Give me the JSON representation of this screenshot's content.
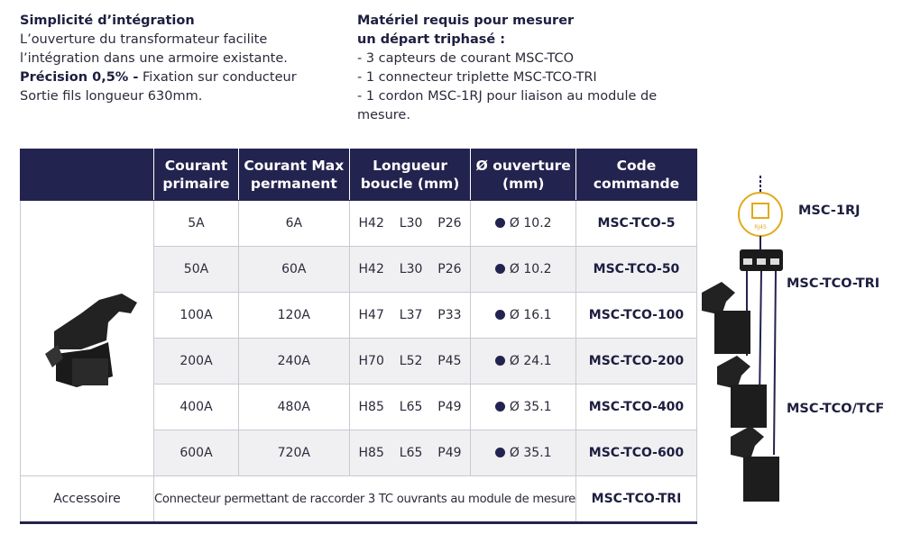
{
  "left": {
    "title": "Simplicité d’intégration",
    "lines": [
      "L’ouverture du transformateur facilite",
      "l’intégration dans une armoire existante."
    ],
    "precision_bold": "Précision 0,5% -",
    "precision_rest": " Fixation sur conducteur",
    "last": "Sortie fils longueur 630mm."
  },
  "right": {
    "title_lines": [
      "Matériel requis pour mesurer",
      "un départ triphasé :"
    ],
    "items": [
      "- 3 capteurs de courant MSC-TCO",
      "- 1 connecteur triplette MSC-TCO-TRI",
      "- 1 cordon MSC-1RJ pour liaison au module de mesure."
    ]
  },
  "table": {
    "header": [
      [
        "Courant",
        "primaire"
      ],
      [
        "Courant Max",
        "permanent"
      ],
      [
        "Longueur",
        "boucle (mm)"
      ],
      [
        "Ø ouverture",
        "(mm)"
      ],
      [
        "Code",
        "commande"
      ]
    ],
    "rows": [
      [
        "5A",
        "6A",
        "H42  L30  P26",
        "Ø 10.2",
        "MSC-TCO-5"
      ],
      [
        "50A",
        "60A",
        "H42  L30  P26",
        "Ø 10.2",
        "MSC-TCO-50"
      ],
      [
        "100A",
        "120A",
        "H47  L37  P33",
        "Ø 16.1",
        "MSC-TCO-100"
      ],
      [
        "200A",
        "240A",
        "H70  L52  P45",
        "Ø 24.1",
        "MSC-TCO-200"
      ],
      [
        "400A",
        "480A",
        "H85  L65  P49",
        "Ø 35.1",
        "MSC-TCO-400"
      ],
      [
        "600A",
        "720A",
        "H85  L65  P49",
        "Ø 35.1",
        "MSC-TCO-600"
      ]
    ],
    "accessory": {
      "label": "Accessoire",
      "description": "Connecteur permettant de raccorder 3 TC ouvrants au module de mesure",
      "code": "MSC-TCO-TRI"
    }
  },
  "diagram": {
    "icon": "RJ45",
    "labels": [
      "MSC-1RJ",
      "MSC-TCO-TRI",
      "MSC-TCO/TCF"
    ]
  }
}
